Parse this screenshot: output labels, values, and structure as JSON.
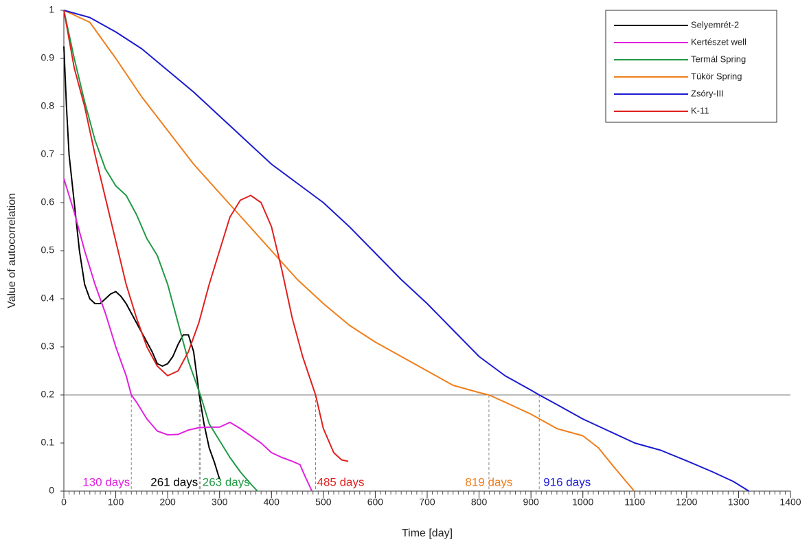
{
  "chart_data": {
    "type": "line",
    "x_label": "Time [day]",
    "y_label": "Value of autocorrelation",
    "xlim": [
      0,
      1400
    ],
    "xticks": [
      0,
      100,
      200,
      300,
      400,
      500,
      600,
      700,
      800,
      900,
      1000,
      1100,
      1200,
      1300,
      1400
    ],
    "xminor": 10,
    "ylim": [
      0,
      1
    ],
    "yticks": [
      0,
      0.1,
      0.2,
      0.3,
      0.4,
      0.5,
      0.6,
      0.7,
      0.8,
      0.9,
      1
    ],
    "grid": false,
    "legend": "upper right",
    "threshold": 0.2,
    "threshold_color": "#777777",
    "series": [
      {
        "name": "Selyemrét-2",
        "color": "#000000",
        "x": [
          0,
          5,
          10,
          20,
          30,
          40,
          50,
          60,
          70,
          80,
          90,
          100,
          110,
          120,
          130,
          140,
          150,
          160,
          170,
          180,
          190,
          200,
          210,
          220,
          230,
          240,
          250,
          261,
          270,
          280,
          290,
          300
        ],
        "values": [
          0.925,
          0.8,
          0.7,
          0.6,
          0.5,
          0.43,
          0.4,
          0.39,
          0.39,
          0.4,
          0.41,
          0.415,
          0.405,
          0.39,
          0.37,
          0.35,
          0.33,
          0.31,
          0.29,
          0.265,
          0.26,
          0.265,
          0.28,
          0.305,
          0.325,
          0.325,
          0.29,
          0.2,
          0.14,
          0.09,
          0.06,
          0.025
        ]
      },
      {
        "name": "Kertészet well",
        "color": "#e020e0",
        "x": [
          0,
          20,
          40,
          60,
          80,
          100,
          120,
          130,
          140,
          160,
          180,
          200,
          220,
          240,
          260,
          280,
          300,
          320,
          340,
          360,
          380,
          400,
          420,
          440,
          455,
          465,
          478
        ],
        "values": [
          0.65,
          0.58,
          0.5,
          0.43,
          0.37,
          0.3,
          0.24,
          0.2,
          0.185,
          0.15,
          0.125,
          0.117,
          0.118,
          0.127,
          0.132,
          0.133,
          0.133,
          0.143,
          0.13,
          0.115,
          0.1,
          0.08,
          0.07,
          0.062,
          0.055,
          0.03,
          0
        ]
      },
      {
        "name": "Termál Spring",
        "color": "#1f9a45",
        "x": [
          0,
          20,
          40,
          60,
          80,
          100,
          120,
          140,
          160,
          180,
          200,
          220,
          240,
          263,
          280,
          300,
          320,
          340,
          360,
          373
        ],
        "values": [
          1,
          0.9,
          0.81,
          0.73,
          0.67,
          0.635,
          0.615,
          0.575,
          0.525,
          0.49,
          0.43,
          0.35,
          0.27,
          0.2,
          0.14,
          0.105,
          0.07,
          0.04,
          0.015,
          0
        ]
      },
      {
        "name": "Tükör Spring",
        "color": "#f07d1a",
        "x": [
          0,
          50,
          100,
          150,
          200,
          250,
          300,
          350,
          400,
          450,
          500,
          550,
          600,
          650,
          700,
          750,
          800,
          819,
          850,
          900,
          950,
          1000,
          1030,
          1060,
          1099
        ],
        "values": [
          1,
          0.975,
          0.9,
          0.82,
          0.75,
          0.68,
          0.62,
          0.56,
          0.5,
          0.44,
          0.39,
          0.345,
          0.31,
          0.28,
          0.25,
          0.22,
          0.205,
          0.2,
          0.185,
          0.16,
          0.13,
          0.115,
          0.09,
          0.05,
          0
        ]
      },
      {
        "name": "Zsóry-III",
        "color": "#1a1ad0",
        "x": [
          0,
          50,
          100,
          150,
          200,
          250,
          300,
          350,
          400,
          450,
          500,
          550,
          600,
          650,
          700,
          750,
          800,
          850,
          900,
          916,
          950,
          1000,
          1050,
          1100,
          1150,
          1200,
          1250,
          1290,
          1320
        ],
        "values": [
          1,
          0.985,
          0.955,
          0.92,
          0.875,
          0.83,
          0.78,
          0.73,
          0.68,
          0.64,
          0.6,
          0.55,
          0.495,
          0.44,
          0.39,
          0.335,
          0.28,
          0.24,
          0.21,
          0.2,
          0.18,
          0.15,
          0.125,
          0.1,
          0.085,
          0.063,
          0.04,
          0.02,
          0
        ]
      },
      {
        "name": "K-11",
        "color": "#e0201e",
        "x": [
          0,
          20,
          40,
          60,
          80,
          100,
          120,
          140,
          160,
          180,
          200,
          220,
          240,
          260,
          280,
          300,
          320,
          340,
          360,
          380,
          400,
          420,
          440,
          460,
          485,
          500,
          520,
          535,
          548
        ],
        "values": [
          1,
          0.88,
          0.8,
          0.7,
          0.61,
          0.52,
          0.43,
          0.36,
          0.3,
          0.26,
          0.24,
          0.25,
          0.29,
          0.35,
          0.43,
          0.5,
          0.57,
          0.605,
          0.615,
          0.6,
          0.55,
          0.46,
          0.36,
          0.28,
          0.2,
          0.13,
          0.08,
          0.065,
          0.062
        ]
      }
    ],
    "annotations": [
      {
        "x": 130,
        "label": "130 days",
        "color": "#e020e0"
      },
      {
        "x": 261,
        "label": "261 days",
        "color": "#000000"
      },
      {
        "x": 263,
        "label": "263 days",
        "color": "#1f9a45"
      },
      {
        "x": 485,
        "label": "485 days",
        "color": "#e0201e"
      },
      {
        "x": 819,
        "label": "819 days",
        "color": "#f07d1a"
      },
      {
        "x": 916,
        "label": "916 days",
        "color": "#1a1ad0"
      }
    ]
  }
}
